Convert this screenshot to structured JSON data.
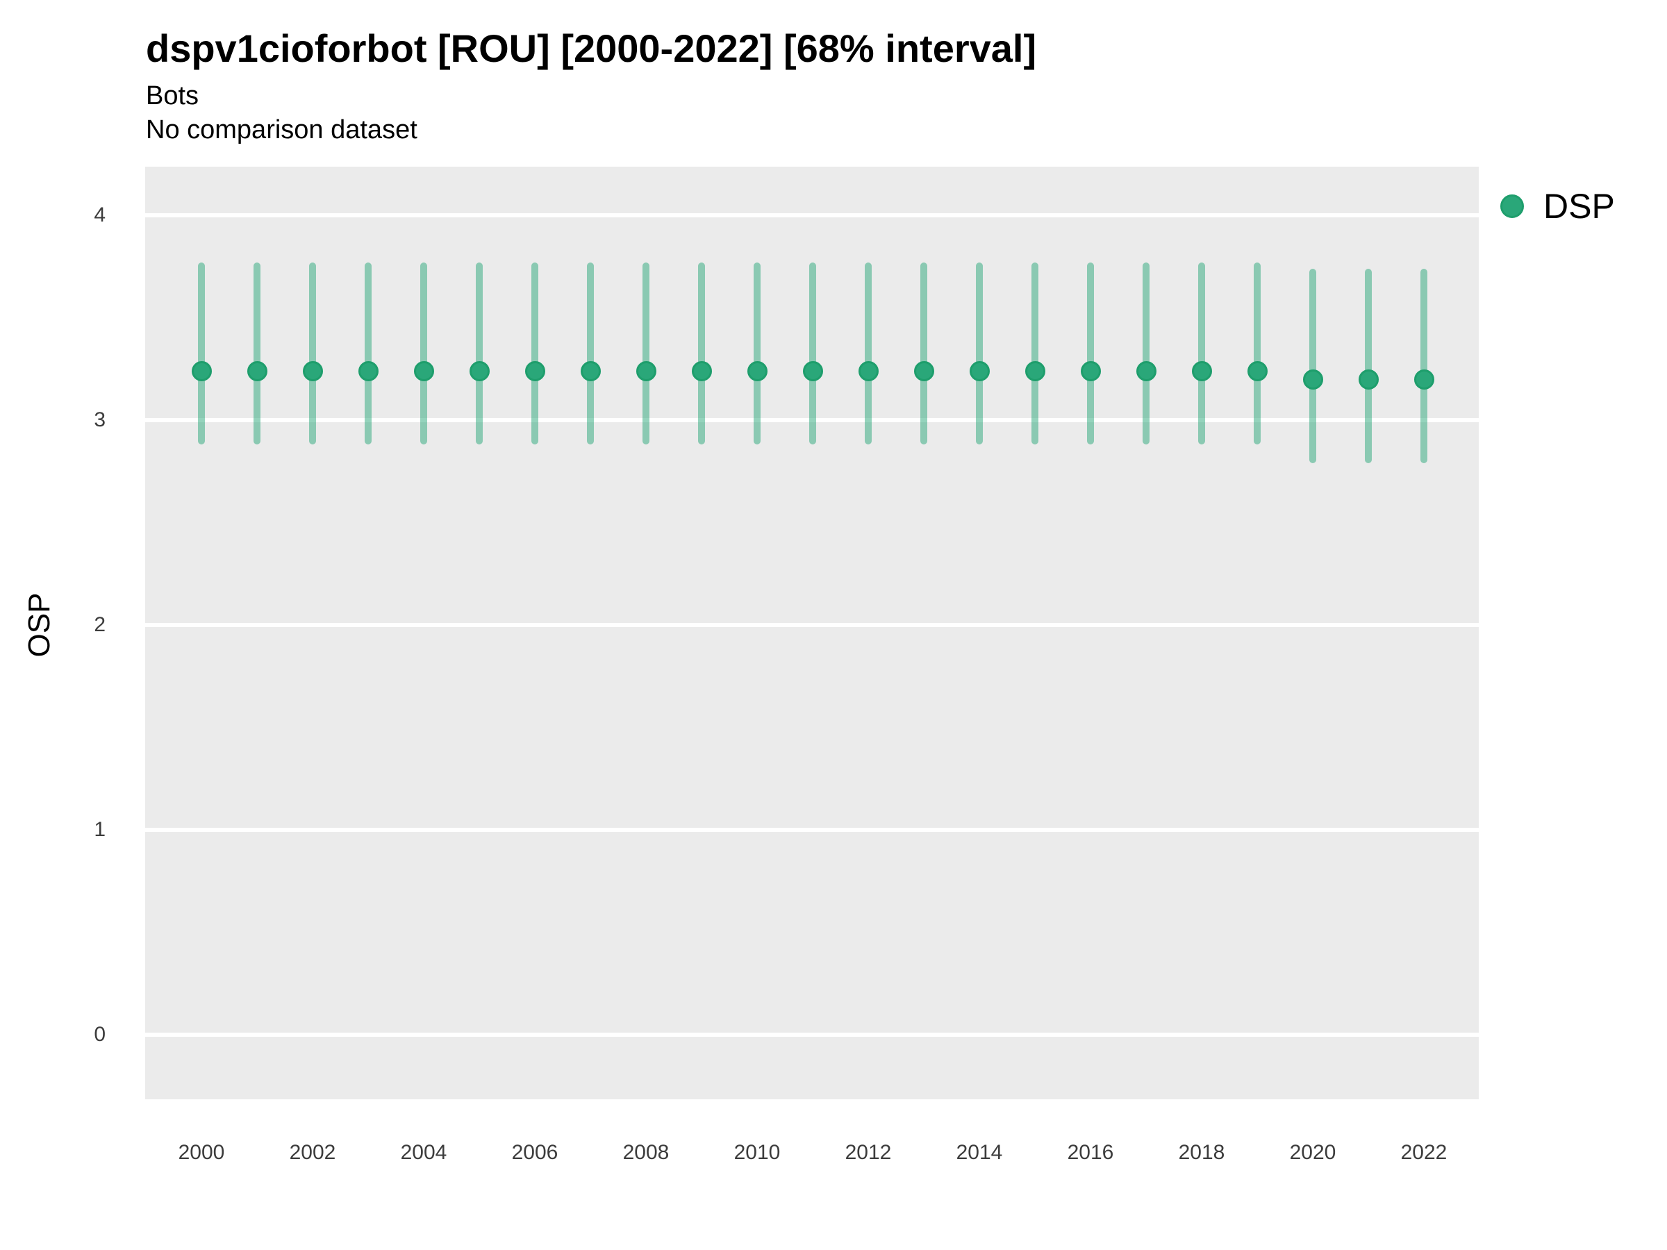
{
  "header": {
    "title": "dspv1cioforbot [ROU] [2000-2022] [68% interval]",
    "subtitle": "Bots",
    "comparison_note": "No comparison dataset"
  },
  "legend": {
    "items": [
      {
        "label": "DSP",
        "swatch_color": "#2aa779",
        "swatch_border": "#1e9e6c"
      }
    ]
  },
  "colors": {
    "panel_background": "#ebebeb",
    "gridline": "#ffffff",
    "point_fill": "#2aa779",
    "point_stroke": "#1e9e6c",
    "interval_line": "rgba(42,167,121,0.5)",
    "tick_text": "#3c3c3c",
    "title_text": "#000000"
  },
  "chart_data": {
    "type": "pointrange-scatter",
    "title": "dspv1cioforbot [ROU] [2000-2022] [68% interval]",
    "subtitle": "Bots",
    "note": "No comparison dataset",
    "xlabel": "",
    "ylabel": "OSP",
    "ylim": [
      -0.31,
      4.24
    ],
    "y_ticks": [
      0,
      1,
      2,
      3,
      4
    ],
    "x_ticks": [
      2000,
      2002,
      2004,
      2006,
      2008,
      2010,
      2012,
      2014,
      2016,
      2018,
      2020,
      2022
    ],
    "grid": "major-horizontal-only",
    "legend_position": "top-right",
    "interval_note": "68% interval shown as vertical range bars",
    "series": [
      {
        "name": "DSP",
        "points": [
          {
            "year": 2000,
            "value": 3.24,
            "lower": 2.88,
            "upper": 3.77
          },
          {
            "year": 2001,
            "value": 3.24,
            "lower": 2.88,
            "upper": 3.77
          },
          {
            "year": 2002,
            "value": 3.24,
            "lower": 2.88,
            "upper": 3.77
          },
          {
            "year": 2003,
            "value": 3.24,
            "lower": 2.88,
            "upper": 3.77
          },
          {
            "year": 2004,
            "value": 3.24,
            "lower": 2.88,
            "upper": 3.77
          },
          {
            "year": 2005,
            "value": 3.24,
            "lower": 2.88,
            "upper": 3.77
          },
          {
            "year": 2006,
            "value": 3.24,
            "lower": 2.88,
            "upper": 3.77
          },
          {
            "year": 2007,
            "value": 3.24,
            "lower": 2.88,
            "upper": 3.77
          },
          {
            "year": 2008,
            "value": 3.24,
            "lower": 2.88,
            "upper": 3.77
          },
          {
            "year": 2009,
            "value": 3.24,
            "lower": 2.88,
            "upper": 3.77
          },
          {
            "year": 2010,
            "value": 3.24,
            "lower": 2.88,
            "upper": 3.77
          },
          {
            "year": 2011,
            "value": 3.24,
            "lower": 2.88,
            "upper": 3.77
          },
          {
            "year": 2012,
            "value": 3.24,
            "lower": 2.88,
            "upper": 3.77
          },
          {
            "year": 2013,
            "value": 3.24,
            "lower": 2.88,
            "upper": 3.77
          },
          {
            "year": 2014,
            "value": 3.24,
            "lower": 2.88,
            "upper": 3.77
          },
          {
            "year": 2015,
            "value": 3.24,
            "lower": 2.88,
            "upper": 3.77
          },
          {
            "year": 2016,
            "value": 3.24,
            "lower": 2.88,
            "upper": 3.77
          },
          {
            "year": 2017,
            "value": 3.24,
            "lower": 2.88,
            "upper": 3.77
          },
          {
            "year": 2018,
            "value": 3.24,
            "lower": 2.88,
            "upper": 3.77
          },
          {
            "year": 2019,
            "value": 3.24,
            "lower": 2.88,
            "upper": 3.77
          },
          {
            "year": 2020,
            "value": 3.2,
            "lower": 2.79,
            "upper": 3.74
          },
          {
            "year": 2021,
            "value": 3.2,
            "lower": 2.79,
            "upper": 3.74
          },
          {
            "year": 2022,
            "value": 3.2,
            "lower": 2.79,
            "upper": 3.74
          }
        ]
      }
    ]
  }
}
